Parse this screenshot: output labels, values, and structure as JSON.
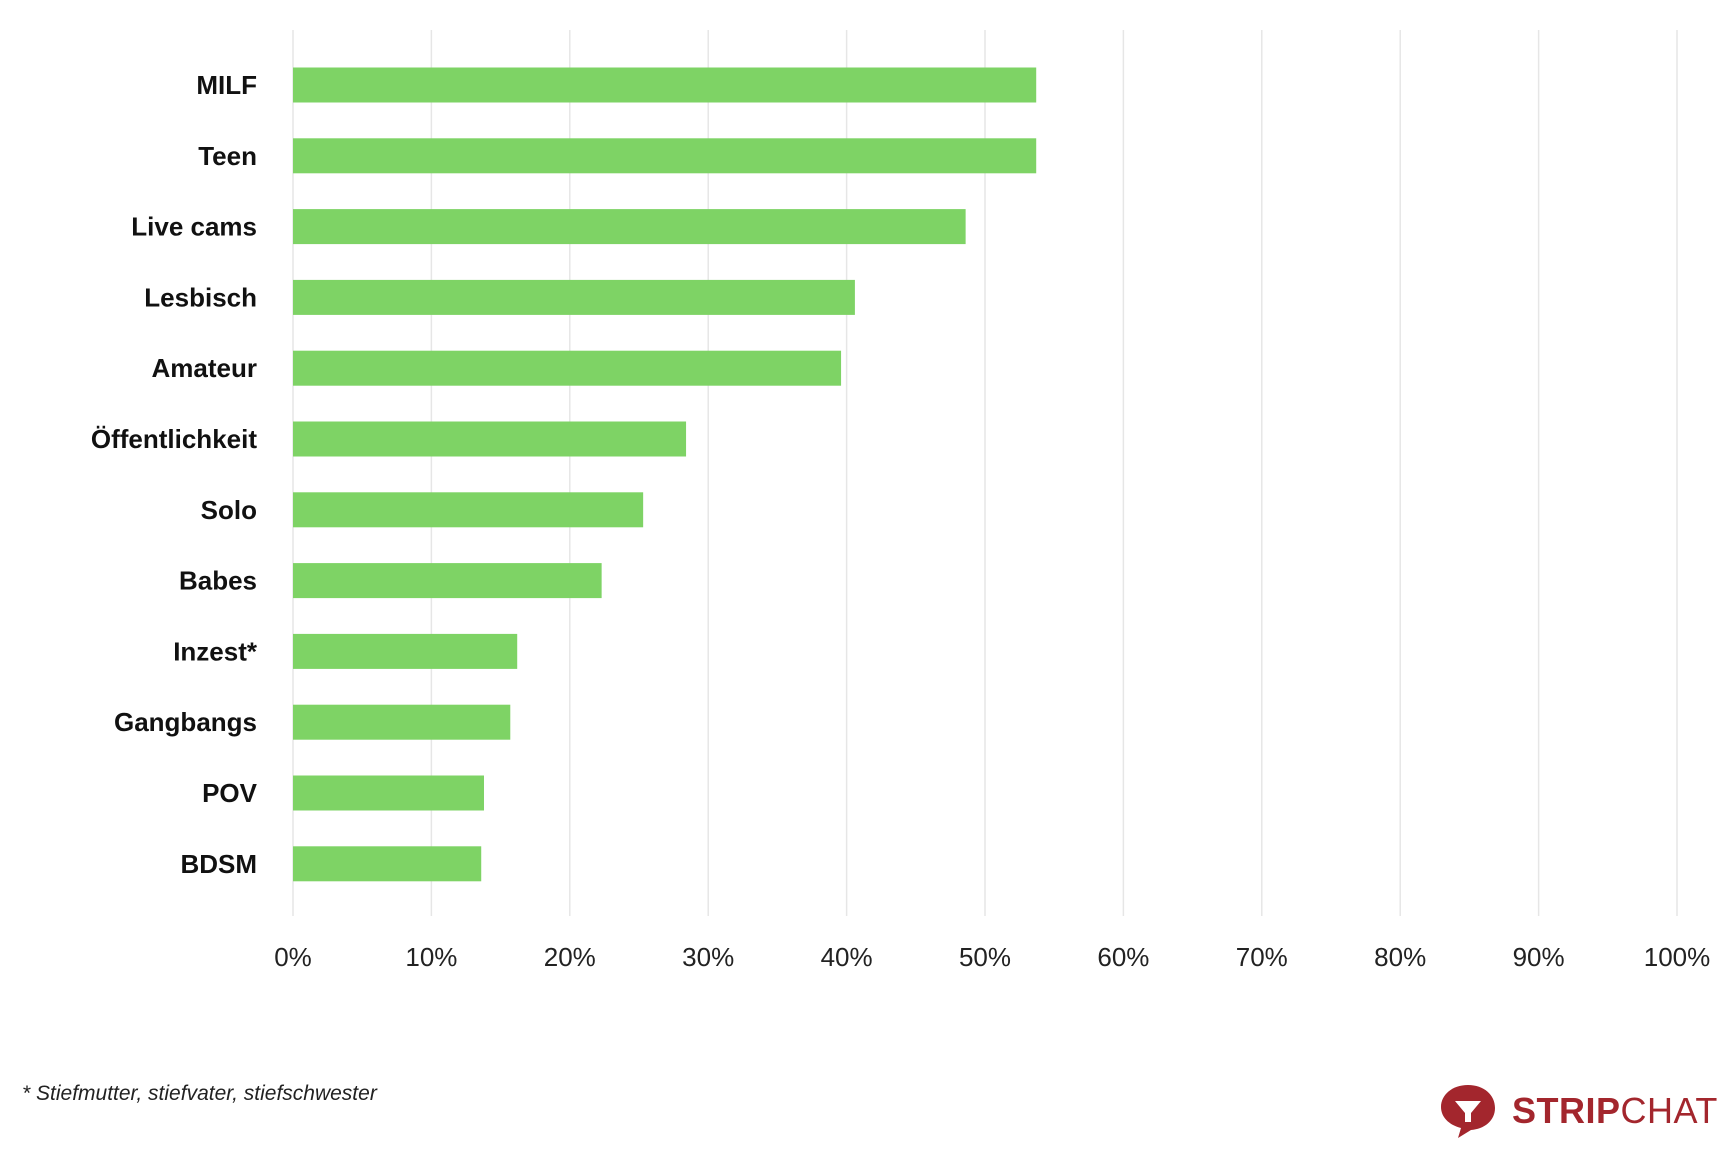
{
  "chart_data": {
    "type": "bar",
    "orientation": "horizontal",
    "title": "",
    "xlabel": "",
    "ylabel": "",
    "categories": [
      "MILF",
      "Teen",
      "Live cams",
      "Lesbisch",
      "Amateur",
      "Öffentlichkeit",
      "Solo",
      "Babes",
      "Inzest*",
      "Gangbangs",
      "POV",
      "BDSM"
    ],
    "values": [
      53.7,
      53.7,
      48.6,
      40.6,
      39.6,
      28.4,
      25.3,
      22.3,
      16.2,
      15.7,
      13.8,
      13.6
    ],
    "xlim": [
      0,
      100
    ],
    "x_ticks": [
      0,
      10,
      20,
      30,
      40,
      50,
      60,
      70,
      80,
      90,
      100
    ],
    "x_tick_labels": [
      "0%",
      "10%",
      "20%",
      "30%",
      "40%",
      "50%",
      "60%",
      "70%",
      "80%",
      "90%",
      "100%"
    ],
    "grid": "vertical",
    "bar_color": "#7ed365",
    "grid_color": "#e6e6e6"
  },
  "footnote": "* Stiefmutter, stiefvater, stiefschwester",
  "brand": {
    "name_bold": "STRIP",
    "name_regular": "CHAT",
    "icon": "stripchat-logo-icon",
    "color": "#a3262d"
  }
}
